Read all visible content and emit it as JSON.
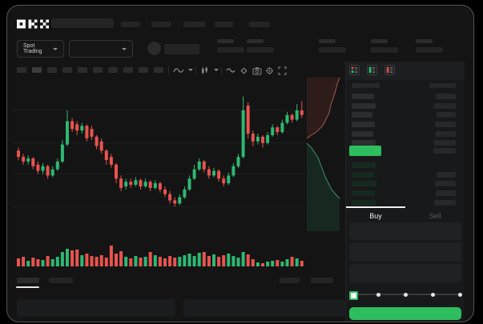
{
  "app": {
    "logo_text": "OKX"
  },
  "theme": {
    "green": "#2eb873",
    "red": "#e8544e",
    "button_green": "#2ebd5f",
    "window_bg": "#141414",
    "panel_bg": "#18191b",
    "text_dim": "#565a5e"
  },
  "header": {
    "search": {
      "value": "",
      "placeholder": ""
    },
    "nav_items": [
      "",
      "",
      "",
      "",
      ""
    ]
  },
  "subheader": {
    "market_selector": {
      "label": "Spot Trading"
    },
    "pair_selector": {
      "label": ""
    },
    "stats": [
      {
        "label": "",
        "value": ""
      },
      {
        "label": "",
        "value": ""
      },
      {
        "label": "",
        "value": ""
      },
      {
        "label": "",
        "value": ""
      },
      {
        "label": "",
        "value": ""
      }
    ]
  },
  "chart_toolbar": {
    "intervals": [
      "",
      "",
      "",
      "",
      "",
      "",
      "",
      "",
      "",
      ""
    ],
    "active_interval_index": 1,
    "icons": [
      "indicator-icon",
      "chevron-down-icon",
      "candle-style-icon",
      "chevron-down-icon",
      "wave-icon",
      "draw-icon",
      "camera-icon",
      "settings-icon",
      "fullscreen-icon"
    ]
  },
  "chart_data": {
    "type": "candlestick",
    "title": "",
    "xlabel": "",
    "ylabel": "",
    "price_range": [
      0,
      100
    ],
    "grid_levels": [
      20,
      41,
      61,
      82
    ],
    "candles": [
      [
        56,
        58,
        50,
        52
      ],
      [
        52,
        54,
        47,
        49
      ],
      [
        49,
        53,
        47,
        51
      ],
      [
        51,
        52,
        44,
        46
      ],
      [
        47,
        49,
        41,
        43
      ],
      [
        43,
        48,
        41,
        46
      ],
      [
        46,
        47,
        38,
        40
      ],
      [
        40,
        46,
        39,
        44
      ],
      [
        44,
        51,
        43,
        49
      ],
      [
        49,
        63,
        48,
        60
      ],
      [
        60,
        82,
        59,
        75
      ],
      [
        75,
        77,
        68,
        70
      ],
      [
        73,
        75,
        66,
        69
      ],
      [
        69,
        74,
        67,
        72
      ],
      [
        72,
        73,
        62,
        64
      ],
      [
        70,
        72,
        63,
        65
      ],
      [
        65,
        66,
        57,
        59
      ],
      [
        62,
        64,
        54,
        56
      ],
      [
        56,
        57,
        47,
        50
      ],
      [
        52,
        54,
        45,
        47
      ],
      [
        47,
        48,
        35,
        38
      ],
      [
        38,
        40,
        30,
        32
      ],
      [
        33,
        38,
        31,
        36
      ],
      [
        36,
        38,
        32,
        34
      ],
      [
        34,
        39,
        33,
        37
      ],
      [
        37,
        38,
        31,
        33
      ],
      [
        33,
        38,
        32,
        36
      ],
      [
        36,
        37,
        30,
        32
      ],
      [
        32,
        37,
        31,
        35
      ],
      [
        35,
        36,
        29,
        31
      ],
      [
        31,
        33,
        26,
        28
      ],
      [
        28,
        30,
        22,
        24
      ],
      [
        24,
        26,
        20,
        22
      ],
      [
        22,
        28,
        21,
        26
      ],
      [
        26,
        33,
        25,
        31
      ],
      [
        31,
        40,
        30,
        38
      ],
      [
        38,
        47,
        37,
        44
      ],
      [
        44,
        51,
        43,
        49
      ],
      [
        49,
        50,
        42,
        44
      ],
      [
        44,
        46,
        38,
        40
      ],
      [
        40,
        45,
        39,
        43
      ],
      [
        43,
        44,
        36,
        38
      ],
      [
        38,
        40,
        33,
        35
      ],
      [
        35,
        42,
        34,
        40
      ],
      [
        40,
        48,
        39,
        46
      ],
      [
        46,
        54,
        45,
        52
      ],
      [
        52,
        91,
        51,
        82
      ],
      [
        85,
        87,
        64,
        67
      ],
      [
        67,
        69,
        59,
        62
      ],
      [
        62,
        67,
        60,
        65
      ],
      [
        65,
        66,
        58,
        61
      ],
      [
        61,
        68,
        60,
        66
      ],
      [
        66,
        73,
        65,
        71
      ],
      [
        71,
        72,
        66,
        68
      ],
      [
        68,
        76,
        67,
        74
      ],
      [
        74,
        81,
        73,
        79
      ],
      [
        79,
        80,
        74,
        76
      ],
      [
        76,
        86,
        75,
        82
      ],
      [
        82,
        88,
        77,
        79
      ]
    ],
    "volume": [
      10,
      12,
      7,
      11,
      9,
      8,
      13,
      9,
      12,
      18,
      22,
      20,
      21,
      14,
      16,
      13,
      12,
      14,
      11,
      26,
      16,
      19,
      12,
      10,
      13,
      11,
      12,
      18,
      14,
      12,
      10,
      13,
      11,
      12,
      14,
      16,
      13,
      17,
      18,
      13,
      15,
      12,
      14,
      16,
      13,
      11,
      18,
      15,
      9,
      5,
      4,
      6,
      7,
      8,
      6,
      9,
      12,
      10,
      7
    ],
    "depth": {
      "asks_boundary": [
        [
          41,
          0
        ],
        [
          38,
          8
        ],
        [
          36,
          16
        ],
        [
          33,
          26
        ],
        [
          30,
          34
        ],
        [
          28,
          44
        ],
        [
          24,
          52
        ],
        [
          20,
          60
        ],
        [
          12,
          68
        ],
        [
          4,
          73
        ],
        [
          0,
          76
        ]
      ],
      "bids_boundary": [
        [
          0,
          82
        ],
        [
          6,
          88
        ],
        [
          10,
          94
        ],
        [
          14,
          100
        ],
        [
          17,
          108
        ],
        [
          20,
          116
        ],
        [
          23,
          124
        ],
        [
          27,
          132
        ],
        [
          31,
          140
        ],
        [
          36,
          146
        ],
        [
          41,
          151
        ]
      ]
    }
  },
  "orderbook": {
    "view_icons": [
      "combined-book-icon",
      "bids-book-icon",
      "asks-book-icon"
    ],
    "columns": [
      "",
      ""
    ],
    "asks": [
      {
        "price": "",
        "amount": "",
        "pw": 28,
        "aw": 25
      },
      {
        "price": "",
        "amount": "",
        "pw": 30,
        "aw": 27
      },
      {
        "price": "",
        "amount": "",
        "pw": 26,
        "aw": 24
      },
      {
        "price": "",
        "amount": "",
        "pw": 29,
        "aw": 26
      },
      {
        "price": "",
        "amount": "",
        "pw": 27,
        "aw": 25
      },
      {
        "price": "",
        "amount": "",
        "pw": 30,
        "aw": 27
      }
    ],
    "last_price": {
      "text": "",
      "highlight": "green"
    },
    "bids": [
      {
        "price": "",
        "amount": "",
        "pw": 30,
        "aw": 0
      },
      {
        "price": "",
        "amount": "",
        "pw": 28,
        "aw": 24
      },
      {
        "price": "",
        "amount": "",
        "pw": 31,
        "aw": 26
      },
      {
        "price": "",
        "amount": "",
        "pw": 29,
        "aw": 25
      },
      {
        "price": "",
        "amount": "",
        "pw": 30,
        "aw": 27
      }
    ]
  },
  "trade_panel": {
    "tabs": [
      {
        "label": "Buy",
        "active": true
      },
      {
        "label": "Sell",
        "active": false
      }
    ],
    "fields": [
      {
        "value": "",
        "placeholder": ""
      },
      {
        "value": "",
        "placeholder": ""
      },
      {
        "value": "",
        "placeholder": ""
      }
    ],
    "slider": {
      "stops": 5,
      "active_stop": 0
    },
    "submit": {
      "label": ""
    }
  },
  "bottom": {
    "tabs": [
      "",
      ""
    ],
    "active_tab_index": 0,
    "right_controls": [
      "",
      ""
    ],
    "panels": [
      "",
      ""
    ]
  }
}
